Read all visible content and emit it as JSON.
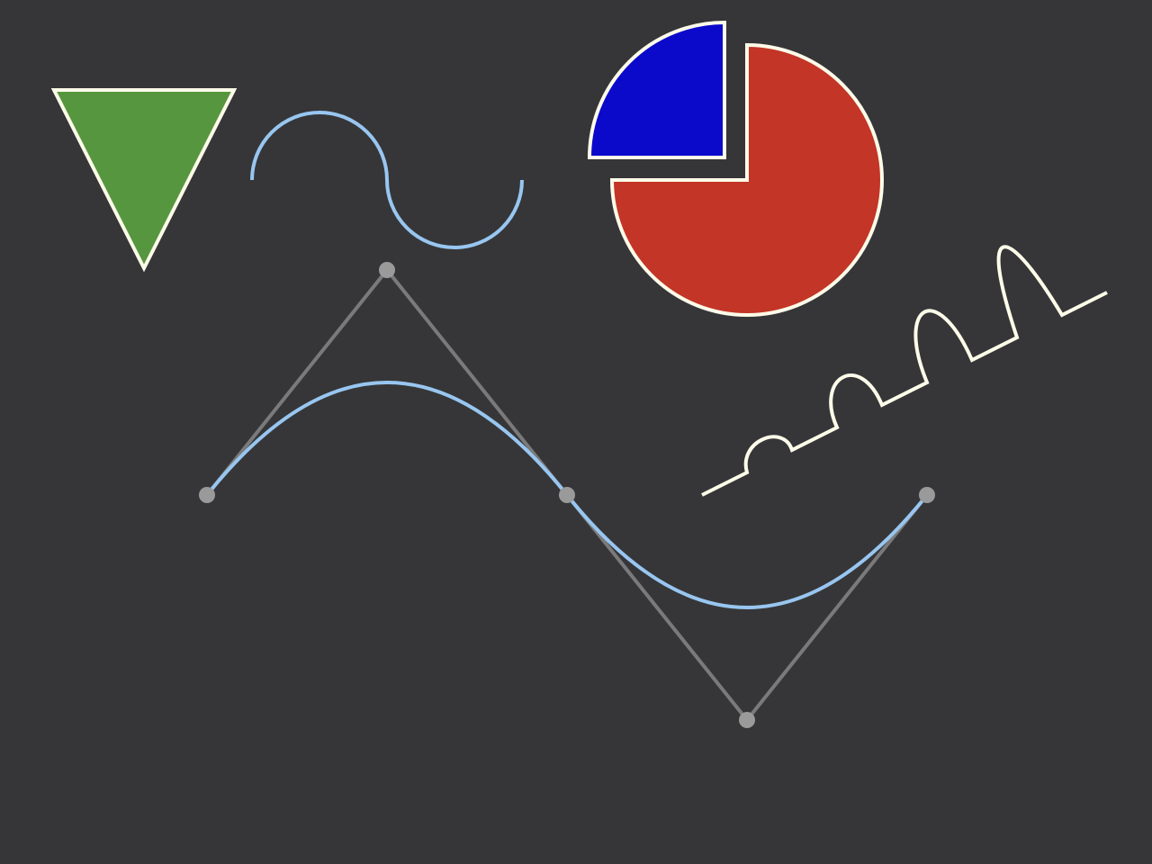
{
  "colors": {
    "background": "#363638",
    "triangle_fill": "#56963f",
    "shape_outline": "#fdfbe9",
    "wave_stroke": "#98c6f0",
    "pie_large_fill": "#c33527",
    "pie_small_fill": "#0b0acb",
    "bezier_curve": "#98c6f0",
    "control_polygon": "#7a7a7a",
    "control_point": "#9a9a9a"
  },
  "shapes": {
    "triangle": {
      "direction": "down"
    },
    "arc_wave": {
      "arcs": 2
    },
    "pie": {
      "slices": [
        {
          "name": "large",
          "fraction": 0.75,
          "exploded": false
        },
        {
          "name": "small",
          "fraction": 0.25,
          "exploded": true
        }
      ]
    },
    "bump_zigzag": {
      "bumps": 4,
      "growing": true
    },
    "bezier": {
      "control_points": 5,
      "curve_segments": 2
    }
  }
}
